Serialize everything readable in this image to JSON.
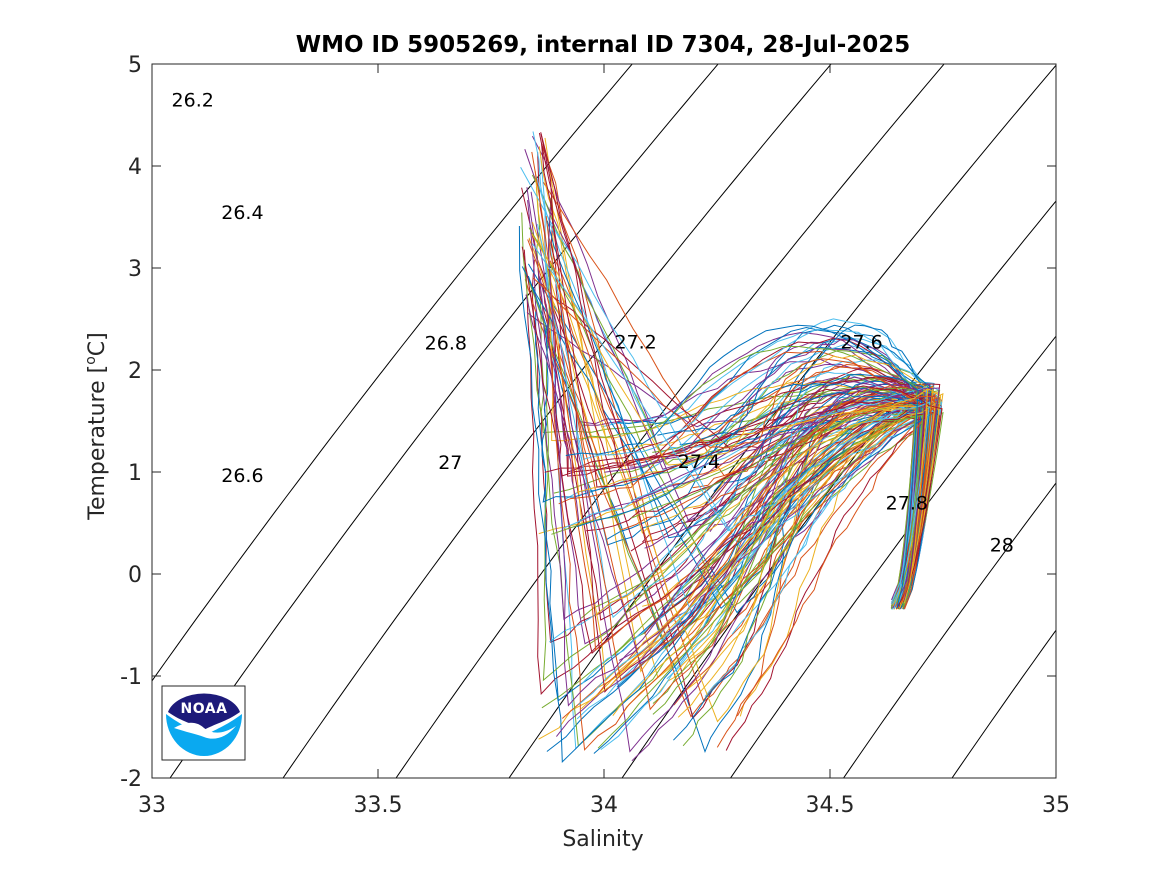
{
  "chart_data": {
    "type": "scatter",
    "title": "WMO ID 5905269, internal ID 7304, 28-Jul-2025",
    "xlabel": "Salinity",
    "ylabel_main": "Temperature [",
    "ylabel_sup": "o",
    "ylabel_end": "C]",
    "xlim": [
      33,
      35
    ],
    "ylim": [
      -2,
      5
    ],
    "xticks": [
      33,
      33.5,
      34,
      34.5,
      35
    ],
    "xtick_labels": [
      "33",
      "33.5",
      "34",
      "34.5",
      "35"
    ],
    "yticks": [
      -2,
      -1,
      0,
      1,
      2,
      3,
      4,
      5
    ],
    "ytick_labels": [
      "-2",
      "-1",
      "0",
      "1",
      "2",
      "3",
      "4",
      "5"
    ],
    "grid": false,
    "density_contours": [
      {
        "level": "26.2",
        "label_s": 33.09,
        "label_t": 4.65
      },
      {
        "level": "26.4",
        "label_s": 33.2,
        "label_t": 3.55
      },
      {
        "level": "26.6",
        "label_s": 33.2,
        "label_t": 0.97
      },
      {
        "level": "26.8",
        "label_s": 33.65,
        "label_t": 2.27
      },
      {
        "level": "27",
        "label_s": 33.66,
        "label_t": 1.1
      },
      {
        "level": "27.2",
        "label_s": 34.07,
        "label_t": 2.28
      },
      {
        "level": "27.4",
        "label_s": 34.21,
        "label_t": 1.11
      },
      {
        "level": "27.6",
        "label_s": 34.57,
        "label_t": 2.28
      },
      {
        "level": "27.8",
        "label_s": 34.67,
        "label_t": 0.7
      },
      {
        "level": "28",
        "label_s": 34.88,
        "label_t": 0.29
      }
    ],
    "profile_summary": {
      "profile_count": 150,
      "deep_end": {
        "salinity": 34.65,
        "temperature": -0.3
      },
      "temperature_max_core": {
        "salinity": 34.72,
        "temperature": 1.7
      },
      "surface_near_fresh": {
        "salinity": 33.85,
        "temperature": 3.8
      }
    },
    "series_colors": [
      "#0072bd",
      "#d95319",
      "#edb120",
      "#7e2f8e",
      "#77ac30",
      "#4dbeee",
      "#a2142f"
    ]
  },
  "logo": {
    "text": "NOAA",
    "colors": {
      "dark": "#1d1a7a",
      "light": "#0aa9f0"
    }
  }
}
